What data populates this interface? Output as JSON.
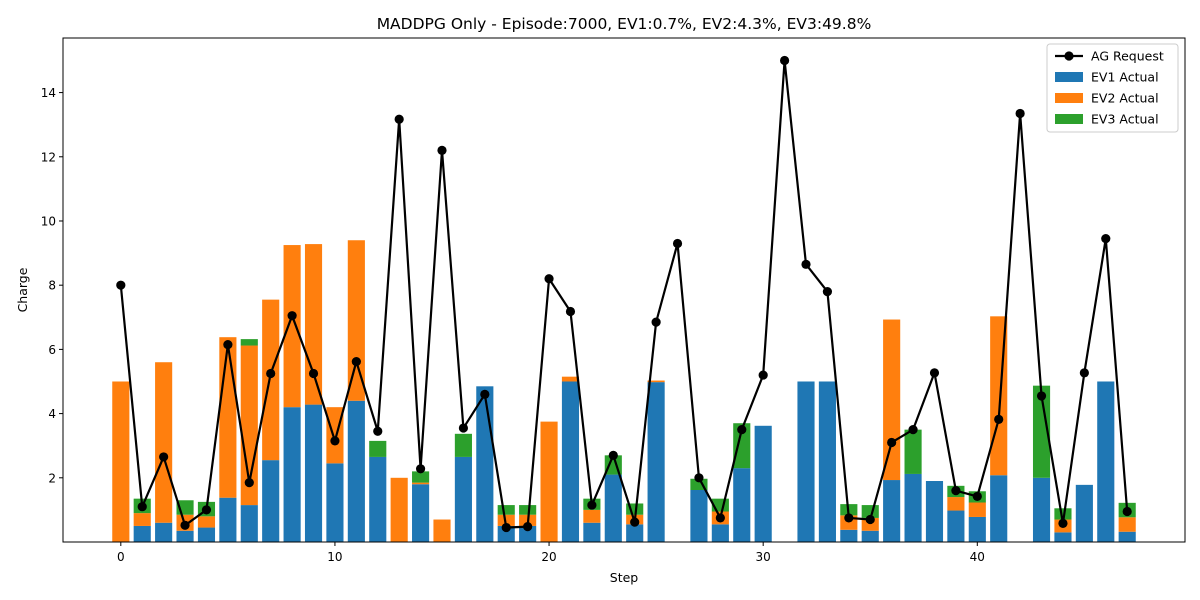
{
  "chart_data": {
    "type": "bar",
    "stacked": true,
    "title": "MADDPG Only - Episode:7000, EV1:0.7%, EV2:4.3%, EV3:49.8%",
    "xlabel": "Step",
    "ylabel": "Charge",
    "xlim": [
      -2.7,
      49.7
    ],
    "ylim": [
      0,
      15.7
    ],
    "xticks": [
      0,
      10,
      20,
      30,
      40
    ],
    "yticks": [
      2,
      4,
      6,
      8,
      10,
      12,
      14
    ],
    "legend_position": "top-right",
    "grid": false,
    "x": [
      0,
      1,
      2,
      3,
      4,
      5,
      6,
      7,
      8,
      9,
      10,
      11,
      12,
      13,
      14,
      15,
      16,
      17,
      18,
      19,
      20,
      21,
      22,
      23,
      24,
      25,
      26,
      27,
      28,
      29,
      30,
      31,
      32,
      33,
      34,
      35,
      36,
      37,
      38,
      39,
      40,
      41,
      42,
      43,
      44,
      45,
      46,
      47
    ],
    "series": [
      {
        "name": "EV1 Actual",
        "kind": "bar",
        "color": "#1f77b4",
        "values": [
          0,
          0.5,
          0.6,
          0.35,
          0.45,
          1.38,
          1.15,
          2.55,
          4.2,
          4.28,
          2.45,
          4.4,
          2.65,
          0,
          1.8,
          0,
          2.65,
          4.85,
          0.5,
          0.5,
          0,
          5.0,
          0.6,
          2.1,
          0.55,
          4.98,
          0,
          1.62,
          0.55,
          2.3,
          3.62,
          0,
          5.0,
          5.0,
          0.38,
          0.35,
          1.93,
          2.12,
          1.9,
          0.98,
          0.78,
          2.08,
          0,
          2.0,
          0.3,
          1.78,
          5.0,
          0.32
        ]
      },
      {
        "name": "EV2 Actual",
        "kind": "bar",
        "color": "#ff7f0e",
        "values": [
          5.0,
          0.4,
          5.0,
          0.5,
          0.35,
          5.0,
          4.97,
          5.0,
          5.05,
          5.0,
          1.75,
          5.0,
          0,
          2.0,
          0.05,
          0.7,
          0,
          0,
          0.35,
          0.35,
          3.75,
          0.15,
          0.4,
          0,
          0.3,
          0.05,
          0,
          0,
          0.4,
          0,
          0,
          0,
          0,
          0,
          0.45,
          0.4,
          5.0,
          0,
          0,
          0.42,
          0.45,
          4.95,
          0,
          0,
          0.4,
          0,
          0,
          0.45
        ]
      },
      {
        "name": "EV3 Actual",
        "kind": "bar",
        "color": "#2ca02c",
        "values": [
          0,
          0.45,
          0,
          0.45,
          0.45,
          0,
          0.2,
          0,
          0,
          0,
          0,
          0,
          0.5,
          0,
          0.35,
          0,
          0.72,
          0,
          0.3,
          0.3,
          0,
          0,
          0.35,
          0.6,
          0.35,
          0,
          0,
          0.35,
          0.4,
          1.4,
          0,
          0,
          0,
          0,
          0.35,
          0.4,
          0,
          1.38,
          0,
          0.35,
          0.35,
          0,
          0,
          2.87,
          0.35,
          0,
          0,
          0.45
        ]
      },
      {
        "name": "AG Request",
        "kind": "line",
        "color": "#000000",
        "values": [
          8.0,
          1.1,
          2.65,
          0.52,
          1.0,
          6.15,
          1.85,
          5.25,
          7.05,
          5.25,
          3.15,
          5.62,
          3.45,
          13.17,
          2.28,
          12.2,
          3.55,
          4.6,
          0.45,
          0.48,
          8.2,
          7.18,
          1.15,
          2.7,
          0.62,
          6.85,
          9.3,
          2.0,
          0.75,
          3.5,
          5.2,
          15.0,
          8.65,
          7.8,
          0.75,
          0.7,
          3.1,
          3.5,
          5.27,
          1.6,
          1.42,
          3.82,
          13.35,
          4.55,
          0.58,
          5.27,
          9.45,
          0.95
        ]
      }
    ]
  }
}
